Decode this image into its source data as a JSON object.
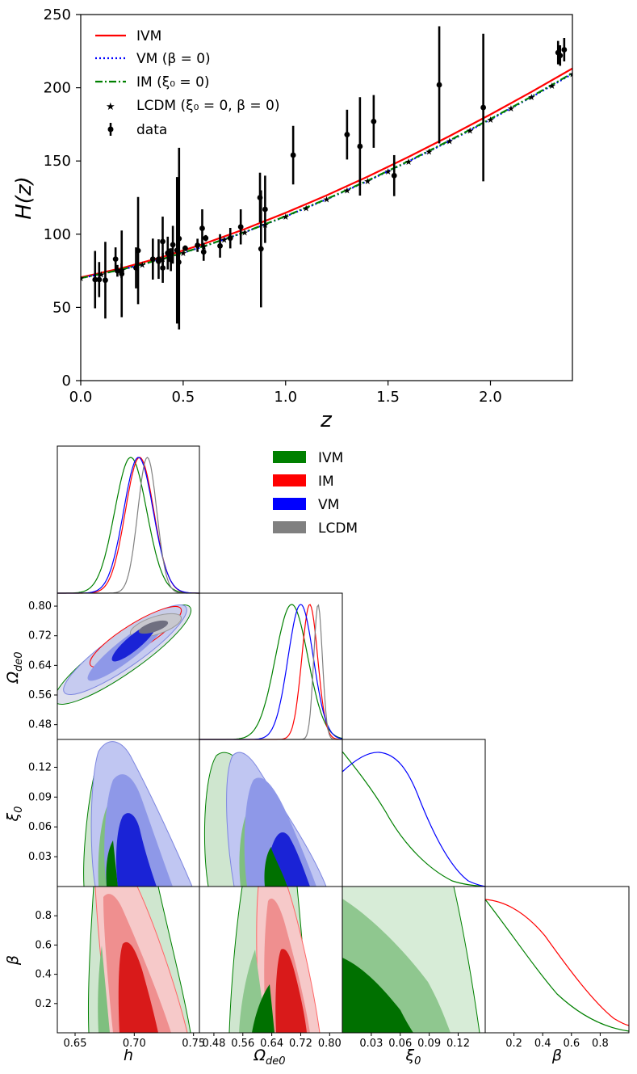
{
  "chart_data": [
    {
      "type": "line",
      "xlabel": "z",
      "ylabel": "H(z)",
      "xlim": [
        0.0,
        2.4
      ],
      "ylim": [
        0,
        250
      ],
      "x_ticks": [
        "0.0",
        "0.5",
        "1.0",
        "1.5",
        "2.0"
      ],
      "y_ticks": [
        "0",
        "50",
        "100",
        "150",
        "200",
        "250"
      ],
      "legend": [
        "IVM",
        "VM (β = 0)",
        "IM (ξ₀ = 0)",
        "LCDM (ξ₀ = 0, β = 0)",
        "data"
      ],
      "series": [
        {
          "name": "IVM",
          "style": "solid",
          "color": "#ff0000",
          "x": [
            0,
            0.2,
            0.4,
            0.6,
            0.8,
            1.0,
            1.2,
            1.4,
            1.6,
            1.8,
            2.0,
            2.2,
            2.4
          ],
          "values": [
            70.5,
            76.8,
            84.5,
            93.4,
            103.5,
            114.6,
            126.5,
            139.3,
            152.8,
            167.0,
            181.8,
            197.2,
            213.2
          ]
        },
        {
          "name": "VM (β = 0)",
          "style": "dotted",
          "color": "#0000ff",
          "x": [
            0,
            0.2,
            0.4,
            0.6,
            0.8,
            1.0,
            1.2,
            1.4,
            1.6,
            1.8,
            2.0,
            2.2,
            2.4
          ],
          "values": [
            70.0,
            75.8,
            83.0,
            91.6,
            101.3,
            112.1,
            123.8,
            136.3,
            149.6,
            163.6,
            178.3,
            193.6,
            209.5
          ]
        },
        {
          "name": "IM (ξ₀ = 0)",
          "style": "dashdot",
          "color": "#008000",
          "x": [
            0,
            0.2,
            0.4,
            0.6,
            0.8,
            1.0,
            1.2,
            1.4,
            1.6,
            1.8,
            2.0,
            2.2,
            2.4
          ],
          "values": [
            70.0,
            75.9,
            83.1,
            91.7,
            101.4,
            112.3,
            124.0,
            136.6,
            149.9,
            164.0,
            178.7,
            194.0,
            210.0
          ]
        },
        {
          "name": "LCDM (ξ₀ = 0, β = 0)",
          "style": "star",
          "color": "#cc00cc",
          "x": [
            0,
            0.1,
            0.2,
            0.3,
            0.4,
            0.5,
            0.6,
            0.7,
            0.8,
            0.9,
            1.0,
            1.1,
            1.2,
            1.3,
            1.4,
            1.5,
            1.6,
            1.7,
            1.8,
            1.9,
            2.0,
            2.1,
            2.2,
            2.3,
            2.4
          ],
          "values": [
            70.0,
            72.6,
            75.6,
            79.1,
            83.0,
            87.2,
            91.6,
            96.3,
            101.3,
            106.6,
            112.1,
            117.9,
            123.8,
            130.0,
            136.3,
            142.8,
            149.6,
            156.5,
            163.6,
            170.9,
            178.3,
            185.9,
            193.6,
            201.4,
            209.5
          ]
        }
      ],
      "data_points": [
        {
          "z": 0.07,
          "H": 69,
          "err": 19.6
        },
        {
          "z": 0.09,
          "H": 69,
          "err": 12
        },
        {
          "z": 0.12,
          "H": 68.6,
          "err": 26.2
        },
        {
          "z": 0.17,
          "H": 83,
          "err": 8
        },
        {
          "z": 0.179,
          "H": 75,
          "err": 4
        },
        {
          "z": 0.199,
          "H": 75,
          "err": 5
        },
        {
          "z": 0.2,
          "H": 72.9,
          "err": 29.6
        },
        {
          "z": 0.27,
          "H": 77,
          "err": 14
        },
        {
          "z": 0.28,
          "H": 88.8,
          "err": 36.6
        },
        {
          "z": 0.352,
          "H": 83,
          "err": 14
        },
        {
          "z": 0.38,
          "H": 81.5,
          "err": 1.9
        },
        {
          "z": 0.3802,
          "H": 83,
          "err": 13.5
        },
        {
          "z": 0.4,
          "H": 95,
          "err": 17
        },
        {
          "z": 0.4004,
          "H": 77,
          "err": 10.2
        },
        {
          "z": 0.4247,
          "H": 87.1,
          "err": 11.2
        },
        {
          "z": 0.43,
          "H": 86.5,
          "err": 3.7
        },
        {
          "z": 0.44,
          "H": 82.6,
          "err": 7.8
        },
        {
          "z": 0.4497,
          "H": 92.8,
          "err": 12.9
        },
        {
          "z": 0.47,
          "H": 89,
          "err": 50
        },
        {
          "z": 0.4783,
          "H": 80.9,
          "err": 9
        },
        {
          "z": 0.48,
          "H": 97,
          "err": 62
        },
        {
          "z": 0.51,
          "H": 90.4,
          "err": 1.9
        },
        {
          "z": 0.57,
          "H": 92.4,
          "err": 4.5
        },
        {
          "z": 0.593,
          "H": 104,
          "err": 13
        },
        {
          "z": 0.6,
          "H": 87.9,
          "err": 6.1
        },
        {
          "z": 0.61,
          "H": 97.3,
          "err": 2.1
        },
        {
          "z": 0.68,
          "H": 92,
          "err": 8
        },
        {
          "z": 0.73,
          "H": 97.3,
          "err": 7
        },
        {
          "z": 0.781,
          "H": 105,
          "err": 12
        },
        {
          "z": 0.875,
          "H": 125,
          "err": 17
        },
        {
          "z": 0.88,
          "H": 90,
          "err": 40
        },
        {
          "z": 0.9,
          "H": 117,
          "err": 23
        },
        {
          "z": 1.037,
          "H": 154,
          "err": 20
        },
        {
          "z": 1.3,
          "H": 168,
          "err": 17
        },
        {
          "z": 1.363,
          "H": 160,
          "err": 33.6
        },
        {
          "z": 1.43,
          "H": 177,
          "err": 18
        },
        {
          "z": 1.53,
          "H": 140,
          "err": 14
        },
        {
          "z": 1.75,
          "H": 202,
          "err": 40
        },
        {
          "z": 1.965,
          "H": 186.5,
          "err": 50.4
        },
        {
          "z": 2.33,
          "H": 224,
          "err": 8
        },
        {
          "z": 2.34,
          "H": 222,
          "err": 7
        },
        {
          "z": 2.36,
          "H": 226,
          "err": 8
        }
      ]
    },
    {
      "type": "corner",
      "parameters": [
        "h",
        "Ω_de0",
        "ξ_0",
        "β"
      ],
      "param_labels": {
        "h": "h",
        "omega_base": "Ω",
        "omega_sub": "de0",
        "xi_base": "ξ",
        "xi_sub": "0",
        "beta": "β"
      },
      "legend": [
        "IVM",
        "IM",
        "VM",
        "LCDM"
      ],
      "colors": {
        "IVM": "#008000",
        "IM": "#ff0000",
        "VM": "#0000ff",
        "LCDM": "#808080"
      },
      "h_ticks": [
        "0.65",
        "0.70",
        "0.75"
      ],
      "omega_ticks_x": [
        "0.48",
        "0.56",
        "0.64",
        "0.72",
        "0.80"
      ],
      "omega_ticks_y": [
        "0.80",
        "0.72",
        "0.64",
        "0.56",
        "0.48"
      ],
      "xi_ticks_x": [
        "0.03",
        "0.06",
        "0.09",
        "0.12"
      ],
      "xi_ticks_y": [
        "0.12",
        "0.09",
        "0.06",
        "0.03"
      ],
      "beta_ticks_x": [
        "0.2",
        "0.4",
        "0.6",
        "0.8"
      ],
      "beta_ticks_y": [
        "0.8",
        "0.6",
        "0.4",
        "0.2"
      ],
      "ranges": {
        "h": [
          0.635,
          0.755
        ],
        "Ω_de0": [
          0.44,
          0.835
        ],
        "ξ_0": [
          0.0,
          0.148
        ],
        "β": [
          0.0,
          1.0
        ]
      },
      "marginals_h": [
        {
          "name": "IVM",
          "mean": 0.697,
          "sd": 0.0135
        },
        {
          "name": "IM",
          "mean": 0.7045,
          "sd": 0.012
        },
        {
          "name": "VM",
          "mean": 0.7035,
          "sd": 0.0125
        },
        {
          "name": "LCDM",
          "mean": 0.711,
          "sd": 0.008
        }
      ],
      "marginals_omega": [
        {
          "name": "IVM",
          "mean": 0.695,
          "sd": 0.045
        },
        {
          "name": "IM",
          "mean": 0.745,
          "sd": 0.022
        },
        {
          "name": "VM",
          "mean": 0.72,
          "sd": 0.035
        },
        {
          "name": "LCDM",
          "mean": 0.768,
          "sd": 0.012
        }
      ]
    }
  ]
}
